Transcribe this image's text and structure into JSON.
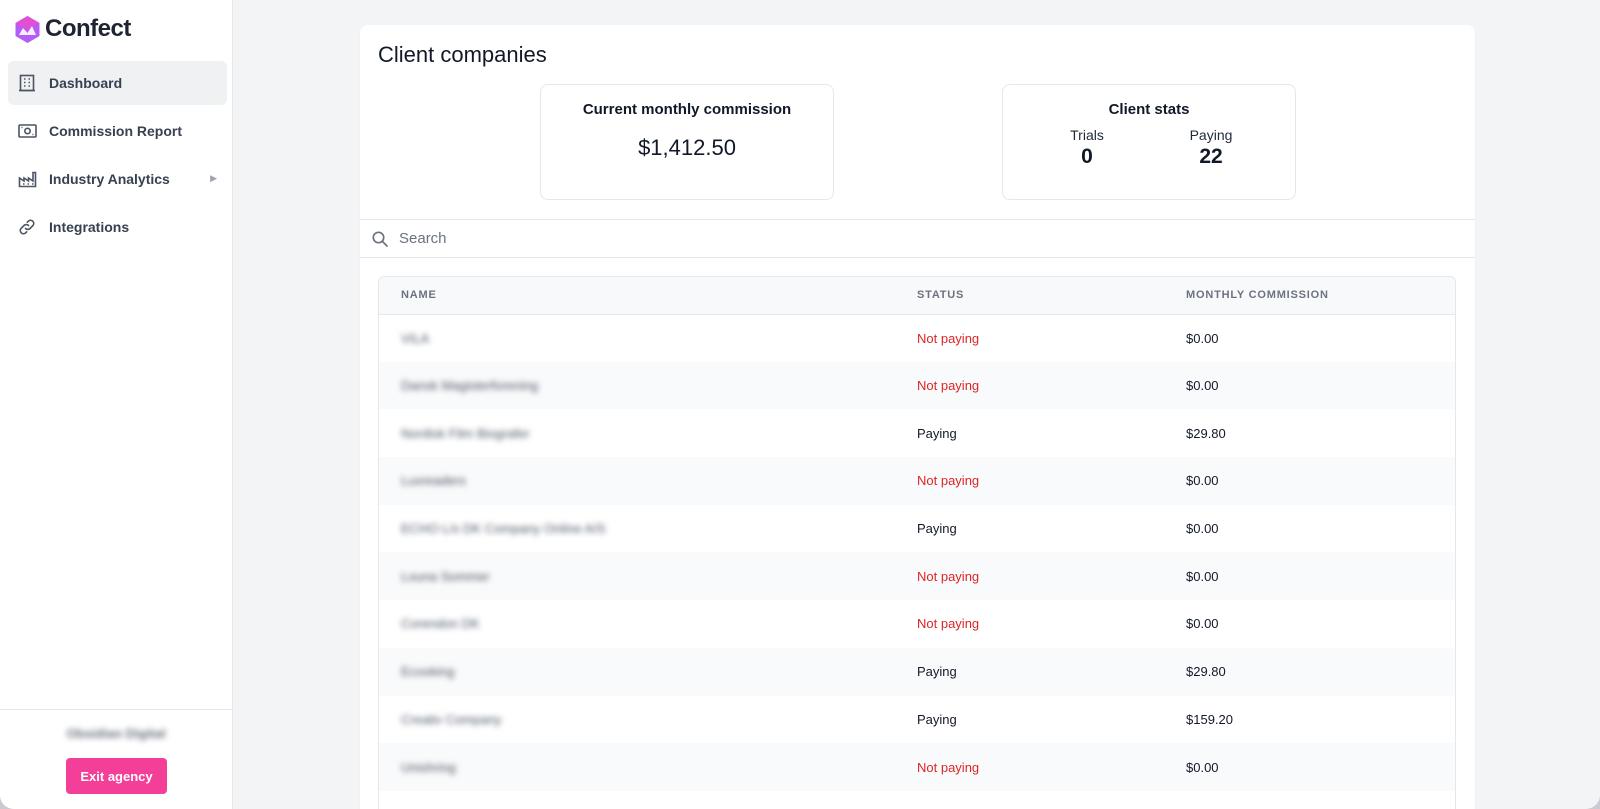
{
  "app": {
    "name": "Confect"
  },
  "sidebar": {
    "items": [
      {
        "label": "Dashboard",
        "icon": "building-icon",
        "active": true
      },
      {
        "label": "Commission Report",
        "icon": "money-icon"
      },
      {
        "label": "Industry Analytics",
        "icon": "factory-icon",
        "has_submenu": true
      },
      {
        "label": "Integrations",
        "icon": "link-icon"
      }
    ],
    "footer": {
      "agency_name": "Obsidian Digital",
      "exit_label": "Exit agency"
    }
  },
  "main": {
    "title": "Client companies",
    "commission": {
      "title": "Current monthly commission",
      "value": "$1,412.50"
    },
    "client_stats": {
      "title": "Client stats",
      "trials_label": "Trials",
      "trials_value": "0",
      "paying_label": "Paying",
      "paying_value": "22"
    },
    "search": {
      "placeholder": "Search",
      "value": ""
    },
    "table": {
      "headers": [
        "NAME",
        "STATUS",
        "MONTHLY COMMISSION"
      ],
      "rows": [
        {
          "name": "VILA",
          "status": "Not paying",
          "commission": "$0.00"
        },
        {
          "name": "Dansk Magisterforening",
          "status": "Not paying",
          "commission": "$0.00"
        },
        {
          "name": "Nordisk Film Biografer",
          "status": "Paying",
          "commission": "$29.80"
        },
        {
          "name": "Luxreaders",
          "status": "Not paying",
          "commission": "$0.00"
        },
        {
          "name": "ECHO L/s DK Company Online A/S",
          "status": "Paying",
          "commission": "$0.00"
        },
        {
          "name": "Louna Sommer",
          "status": "Not paying",
          "commission": "$0.00"
        },
        {
          "name": "Corendon DK",
          "status": "Not paying",
          "commission": "$0.00"
        },
        {
          "name": "Ecooking",
          "status": "Paying",
          "commission": "$29.80"
        },
        {
          "name": "Creativ Company",
          "status": "Paying",
          "commission": "$159.20"
        },
        {
          "name": "Unishring",
          "status": "Not paying",
          "commission": "$0.00"
        }
      ]
    }
  },
  "colors": {
    "accent": "#f43f99",
    "not_paying": "#dc2626",
    "logo": "#a855f7"
  }
}
